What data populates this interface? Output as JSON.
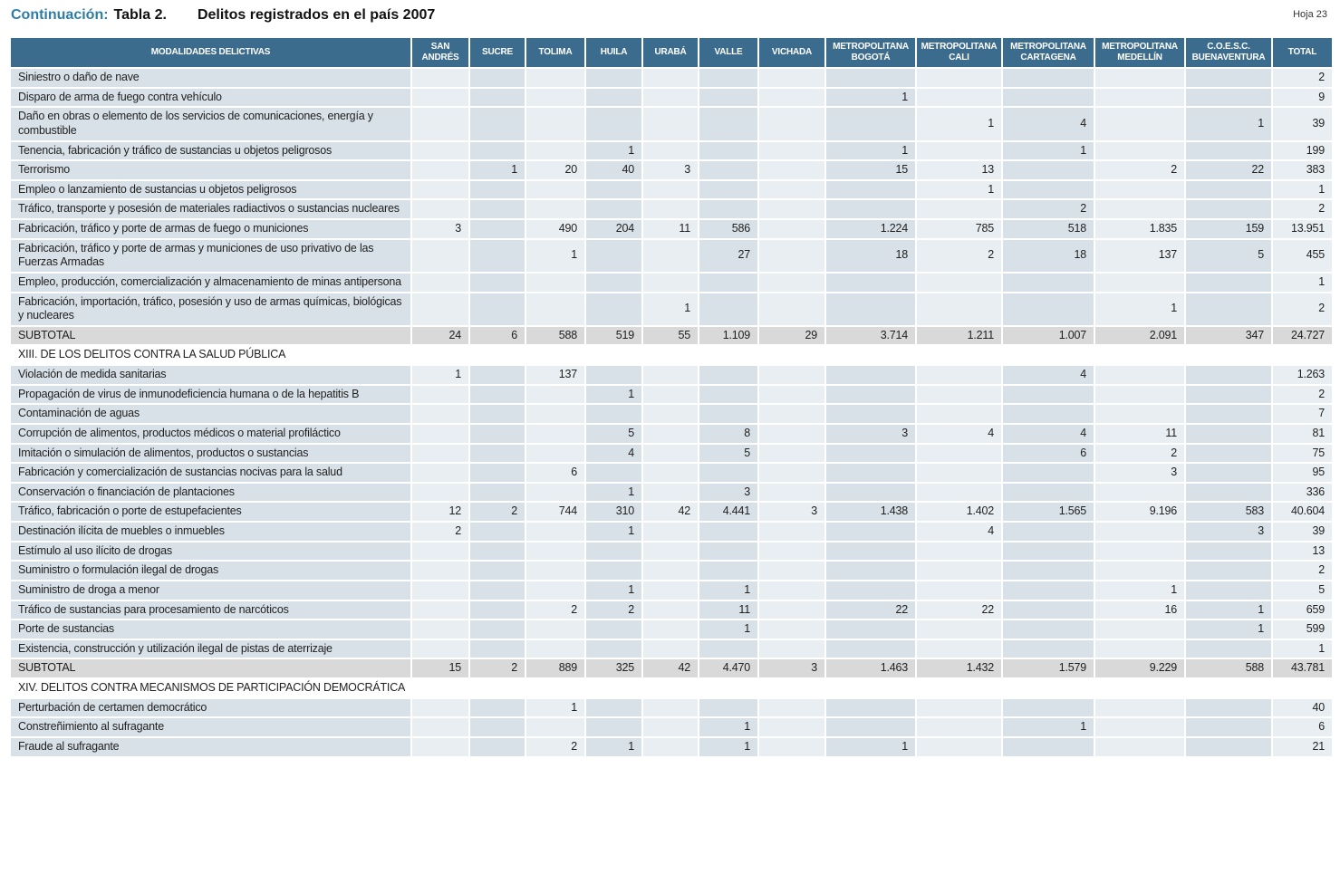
{
  "page": {
    "continuation_label": "Continuación:",
    "table_number": "Tabla 2.",
    "title": "Delitos registrados en el país 2007",
    "sheet": "Hoja 23"
  },
  "colors": {
    "header_bg": "#3c6c8d",
    "accent_teal": "#2e7da6",
    "row_dark": "#d8e1e8",
    "row_light": "#e9eef2",
    "subtotal_bg": "#d9d9d9"
  },
  "table": {
    "columns": [
      "MODALIDADES DELICTIVAS",
      "SAN ANDRÉS",
      "SUCRE",
      "TOLIMA",
      "HUILA",
      "URABÁ",
      "VALLE",
      "VICHADA",
      "METROPOLITANA BOGOTÁ",
      "METROPOLITANA CALI",
      "METROPOLITANA CARTAGENA",
      "METROPOLITANA MEDELLÍN",
      "C.O.E.S.C. BUENAVENTURA",
      "TOTAL"
    ],
    "rows": [
      {
        "type": "data",
        "label": "Siniestro o daño de nave",
        "values": [
          "",
          "",
          "",
          "",
          "",
          "",
          "",
          "",
          "",
          "",
          "",
          "",
          "2"
        ]
      },
      {
        "type": "data",
        "label": "Disparo de arma de fuego contra vehículo",
        "values": [
          "",
          "",
          "",
          "",
          "",
          "",
          "",
          "1",
          "",
          "",
          "",
          "",
          "9"
        ]
      },
      {
        "type": "data",
        "label": "Daño en obras o elemento de los servicios de comunicaciones, energía y combustible",
        "values": [
          "",
          "",
          "",
          "",
          "",
          "",
          "",
          "",
          "1",
          "4",
          "",
          "1",
          "39"
        ]
      },
      {
        "type": "data",
        "label": "Tenencia, fabricación y tráfico de sustancias u objetos peligrosos",
        "values": [
          "",
          "",
          "",
          "1",
          "",
          "",
          "",
          "1",
          "",
          "1",
          "",
          "",
          "199"
        ]
      },
      {
        "type": "data",
        "label": "Terrorismo",
        "values": [
          "",
          "1",
          "20",
          "40",
          "3",
          "",
          "",
          "15",
          "13",
          "",
          "2",
          "22",
          "383"
        ]
      },
      {
        "type": "data",
        "label": "Empleo o lanzamiento de sustancias u objetos peligrosos",
        "values": [
          "",
          "",
          "",
          "",
          "",
          "",
          "",
          "",
          "1",
          "",
          "",
          "",
          "1"
        ]
      },
      {
        "type": "data",
        "label": "Tráfico, transporte y posesión de materiales radiactivos o sustancias nucleares",
        "values": [
          "",
          "",
          "",
          "",
          "",
          "",
          "",
          "",
          "",
          "2",
          "",
          "",
          "2"
        ]
      },
      {
        "type": "data",
        "label": "Fabricación, tráfico y porte de armas de fuego o municiones",
        "values": [
          "3",
          "",
          "490",
          "204",
          "11",
          "586",
          "",
          "1.224",
          "785",
          "518",
          "1.835",
          "159",
          "13.951"
        ]
      },
      {
        "type": "data",
        "label": "Fabricación, tráfico y porte de armas y municiones de uso privativo de las Fuerzas Armadas",
        "values": [
          "",
          "",
          "1",
          "",
          "",
          "27",
          "",
          "18",
          "2",
          "18",
          "137",
          "5",
          "455"
        ]
      },
      {
        "type": "data",
        "label": "Empleo, producción, comercialización y almacenamiento de minas antipersona",
        "values": [
          "",
          "",
          "",
          "",
          "",
          "",
          "",
          "",
          "",
          "",
          "",
          "",
          "1"
        ]
      },
      {
        "type": "data",
        "label": "Fabricación, importación, tráfico, posesión y uso de armas químicas, biológicas y nucleares",
        "values": [
          "",
          "",
          "",
          "",
          "1",
          "",
          "",
          "",
          "",
          "",
          "1",
          "",
          "2"
        ]
      },
      {
        "type": "subtotal",
        "label": "SUBTOTAL",
        "values": [
          "24",
          "6",
          "588",
          "519",
          "55",
          "1.109",
          "29",
          "3.714",
          "1.211",
          "1.007",
          "2.091",
          "347",
          "24.727"
        ]
      },
      {
        "type": "section",
        "label": "XIII. DE LOS DELITOS CONTRA LA SALUD PÚBLICA"
      },
      {
        "type": "data",
        "label": "Violación de medida sanitarias",
        "values": [
          "1",
          "",
          "137",
          "",
          "",
          "",
          "",
          "",
          "",
          "4",
          "",
          "",
          "1.263"
        ]
      },
      {
        "type": "data",
        "label": "Propagación de virus de inmunodeficiencia humana o de la hepatitis B",
        "values": [
          "",
          "",
          "",
          "1",
          "",
          "",
          "",
          "",
          "",
          "",
          "",
          "",
          "2"
        ]
      },
      {
        "type": "data",
        "label": "Contaminación de aguas",
        "values": [
          "",
          "",
          "",
          "",
          "",
          "",
          "",
          "",
          "",
          "",
          "",
          "",
          "7"
        ]
      },
      {
        "type": "data",
        "label": "Corrupción de alimentos, productos médicos o material profiláctico",
        "values": [
          "",
          "",
          "",
          "5",
          "",
          "8",
          "",
          "3",
          "4",
          "4",
          "11",
          "",
          "81"
        ]
      },
      {
        "type": "data",
        "label": "Imitación o simulación de alimentos, productos o sustancias",
        "values": [
          "",
          "",
          "",
          "4",
          "",
          "5",
          "",
          "",
          "",
          "6",
          "2",
          "",
          "75"
        ]
      },
      {
        "type": "data",
        "label": "Fabricación y comercialización de sustancias nocivas para la salud",
        "values": [
          "",
          "",
          "6",
          "",
          "",
          "",
          "",
          "",
          "",
          "",
          "3",
          "",
          "95"
        ]
      },
      {
        "type": "data",
        "label": "Conservación o financiación de plantaciones",
        "values": [
          "",
          "",
          "",
          "1",
          "",
          "3",
          "",
          "",
          "",
          "",
          "",
          "",
          "336"
        ]
      },
      {
        "type": "data",
        "label": "Tráfico, fabricación o porte de estupefacientes",
        "values": [
          "12",
          "2",
          "744",
          "310",
          "42",
          "4.441",
          "3",
          "1.438",
          "1.402",
          "1.565",
          "9.196",
          "583",
          "40.604"
        ]
      },
      {
        "type": "data",
        "label": "Destinación ilícita de muebles o inmuebles",
        "values": [
          "2",
          "",
          "",
          "1",
          "",
          "",
          "",
          "",
          "4",
          "",
          "",
          "3",
          "39"
        ]
      },
      {
        "type": "data",
        "label": "Estímulo al uso ilícito de drogas",
        "values": [
          "",
          "",
          "",
          "",
          "",
          "",
          "",
          "",
          "",
          "",
          "",
          "",
          "13"
        ]
      },
      {
        "type": "data",
        "label": "Suministro o formulación ilegal de drogas",
        "values": [
          "",
          "",
          "",
          "",
          "",
          "",
          "",
          "",
          "",
          "",
          "",
          "",
          "2"
        ]
      },
      {
        "type": "data",
        "label": "Suministro de droga a menor",
        "values": [
          "",
          "",
          "",
          "1",
          "",
          "1",
          "",
          "",
          "",
          "",
          "1",
          "",
          "5"
        ]
      },
      {
        "type": "data",
        "label": "Tráfico de sustancias para procesamiento de narcóticos",
        "values": [
          "",
          "",
          "2",
          "2",
          "",
          "11",
          "",
          "22",
          "22",
          "",
          "16",
          "1",
          "659"
        ]
      },
      {
        "type": "data",
        "label": "Porte de sustancias",
        "values": [
          "",
          "",
          "",
          "",
          "",
          "1",
          "",
          "",
          "",
          "",
          "",
          "1",
          "599"
        ]
      },
      {
        "type": "data",
        "label": "Existencia, construcción y utilización ilegal de pistas de aterrizaje",
        "values": [
          "",
          "",
          "",
          "",
          "",
          "",
          "",
          "",
          "",
          "",
          "",
          "",
          "1"
        ]
      },
      {
        "type": "subtotal",
        "label": "SUBTOTAL",
        "values": [
          "15",
          "2",
          "889",
          "325",
          "42",
          "4.470",
          "3",
          "1.463",
          "1.432",
          "1.579",
          "9.229",
          "588",
          "43.781"
        ]
      },
      {
        "type": "section",
        "label": "XIV. DELITOS CONTRA MECANISMOS DE PARTICIPACIÓN DEMOCRÁTICA"
      },
      {
        "type": "data",
        "label": "Perturbación de certamen democrático",
        "values": [
          "",
          "",
          "1",
          "",
          "",
          "",
          "",
          "",
          "",
          "",
          "",
          "",
          "40"
        ]
      },
      {
        "type": "data",
        "label": "Constreñimiento al sufragante",
        "values": [
          "",
          "",
          "",
          "",
          "",
          "1",
          "",
          "",
          "",
          "1",
          "",
          "",
          "6"
        ]
      },
      {
        "type": "data",
        "label": "Fraude al sufragante",
        "values": [
          "",
          "",
          "2",
          "1",
          "",
          "1",
          "",
          "1",
          "",
          "",
          "",
          "",
          "21"
        ]
      }
    ]
  }
}
